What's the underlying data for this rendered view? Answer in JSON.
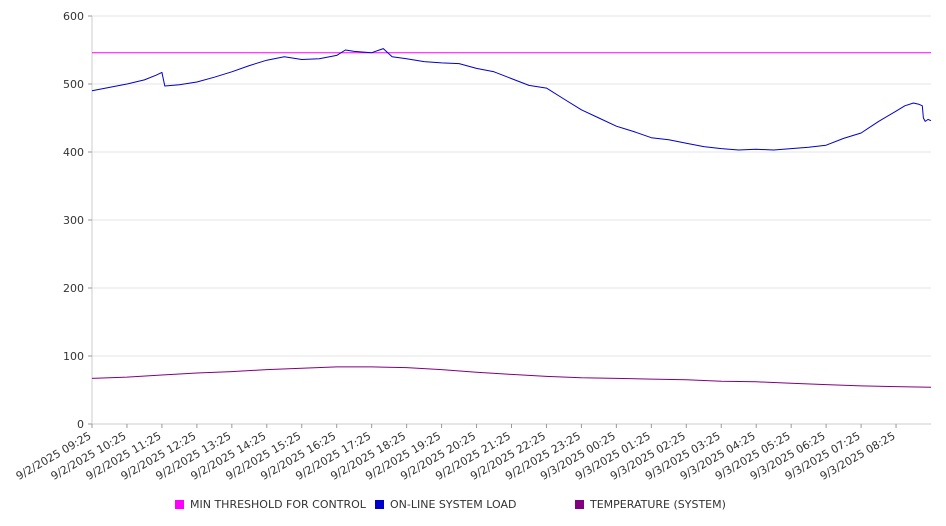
{
  "chart_data": {
    "type": "line",
    "title": "",
    "xlabel": "",
    "ylabel": "",
    "ylim": [
      0,
      600
    ],
    "y_ticks": [
      0,
      100,
      200,
      300,
      400,
      500,
      600
    ],
    "grid": true,
    "legend_position": "bottom",
    "x_tick_labels": [
      "9/2/2025 09:25",
      "9/2/2025 10:25",
      "9/2/2025 11:25",
      "9/2/2025 12:25",
      "9/2/2025 13:25",
      "9/2/2025 14:25",
      "9/2/2025 15:25",
      "9/2/2025 16:25",
      "9/2/2025 17:25",
      "9/2/2025 18:25",
      "9/2/2025 19:25",
      "9/2/2025 20:25",
      "9/2/2025 21:25",
      "9/2/2025 22:25",
      "9/2/2025 23:25",
      "9/3/2025 00:25",
      "9/3/2025 01:25",
      "9/3/2025 02:25",
      "9/3/2025 03:25",
      "9/3/2025 04:25",
      "9/3/2025 05:25",
      "9/3/2025 06:25",
      "9/3/2025 07:25",
      "9/3/2025 08:25"
    ],
    "series": [
      {
        "name": "MIN THRESHOLD FOR CONTROL",
        "color": "#ff00ff",
        "points": [
          [
            "9/2/2025 09:25",
            546
          ],
          [
            "9/3/2025 09:25",
            546
          ]
        ]
      },
      {
        "name": "ON-LINE SYSTEM LOAD",
        "color": "#0000cc",
        "points": [
          [
            "9/2/2025 09:25",
            490
          ],
          [
            "9/2/2025 09:55",
            495
          ],
          [
            "9/2/2025 10:25",
            500
          ],
          [
            "9/2/2025 10:55",
            506
          ],
          [
            "9/2/2025 11:15",
            513
          ],
          [
            "9/2/2025 11:25",
            517
          ],
          [
            "9/2/2025 11:30",
            497
          ],
          [
            "9/2/2025 11:55",
            499
          ],
          [
            "9/2/2025 12:25",
            503
          ],
          [
            "9/2/2025 12:55",
            510
          ],
          [
            "9/2/2025 13:25",
            518
          ],
          [
            "9/2/2025 13:55",
            527
          ],
          [
            "9/2/2025 14:25",
            535
          ],
          [
            "9/2/2025 14:55",
            540
          ],
          [
            "9/2/2025 15:25",
            536
          ],
          [
            "9/2/2025 15:55",
            537
          ],
          [
            "9/2/2025 16:25",
            542
          ],
          [
            "9/2/2025 16:40",
            550
          ],
          [
            "9/2/2025 16:55",
            548
          ],
          [
            "9/2/2025 17:25",
            546
          ],
          [
            "9/2/2025 17:45",
            552
          ],
          [
            "9/2/2025 18:00",
            540
          ],
          [
            "9/2/2025 18:25",
            537
          ],
          [
            "9/2/2025 18:55",
            533
          ],
          [
            "9/2/2025 19:25",
            531
          ],
          [
            "9/2/2025 19:55",
            530
          ],
          [
            "9/2/2025 20:25",
            523
          ],
          [
            "9/2/2025 20:55",
            518
          ],
          [
            "9/2/2025 21:25",
            508
          ],
          [
            "9/2/2025 21:55",
            498
          ],
          [
            "9/2/2025 22:25",
            494
          ],
          [
            "9/2/2025 22:55",
            478
          ],
          [
            "9/2/2025 23:25",
            462
          ],
          [
            "9/2/2025 23:55",
            450
          ],
          [
            "9/3/2025 00:25",
            438
          ],
          [
            "9/3/2025 00:55",
            430
          ],
          [
            "9/3/2025 01:25",
            421
          ],
          [
            "9/3/2025 01:55",
            418
          ],
          [
            "9/3/2025 02:25",
            413
          ],
          [
            "9/3/2025 02:55",
            408
          ],
          [
            "9/3/2025 03:25",
            405
          ],
          [
            "9/3/2025 03:55",
            403
          ],
          [
            "9/3/2025 04:25",
            404
          ],
          [
            "9/3/2025 04:55",
            403
          ],
          [
            "9/3/2025 05:25",
            405
          ],
          [
            "9/3/2025 05:55",
            407
          ],
          [
            "9/3/2025 06:25",
            410
          ],
          [
            "9/3/2025 06:55",
            420
          ],
          [
            "9/3/2025 07:25",
            428
          ],
          [
            "9/3/2025 07:55",
            445
          ],
          [
            "9/3/2025 08:25",
            460
          ],
          [
            "9/3/2025 08:40",
            468
          ],
          [
            "9/3/2025 08:55",
            472
          ],
          [
            "9/3/2025 09:05",
            470
          ],
          [
            "9/3/2025 09:10",
            468
          ],
          [
            "9/3/2025 09:12",
            450
          ],
          [
            "9/3/2025 09:15",
            445
          ],
          [
            "9/3/2025 09:20",
            448
          ],
          [
            "9/3/2025 09:25",
            446
          ]
        ]
      },
      {
        "name": "TEMPERATURE (SYSTEM)",
        "color": "#800080",
        "points": [
          [
            "9/2/2025 09:25",
            67
          ],
          [
            "9/2/2025 10:25",
            69
          ],
          [
            "9/2/2025 11:25",
            72
          ],
          [
            "9/2/2025 12:25",
            75
          ],
          [
            "9/2/2025 13:25",
            77
          ],
          [
            "9/2/2025 14:25",
            80
          ],
          [
            "9/2/2025 15:25",
            82
          ],
          [
            "9/2/2025 16:25",
            84
          ],
          [
            "9/2/2025 17:25",
            84
          ],
          [
            "9/2/2025 18:25",
            83
          ],
          [
            "9/2/2025 19:25",
            80
          ],
          [
            "9/2/2025 20:25",
            76
          ],
          [
            "9/2/2025 21:25",
            73
          ],
          [
            "9/2/2025 22:25",
            70
          ],
          [
            "9/2/2025 23:25",
            68
          ],
          [
            "9/3/2025 00:25",
            67
          ],
          [
            "9/3/2025 01:25",
            66
          ],
          [
            "9/3/2025 02:25",
            65
          ],
          [
            "9/3/2025 03:25",
            63
          ],
          [
            "9/3/2025 04:25",
            62
          ],
          [
            "9/3/2025 05:25",
            60
          ],
          [
            "9/3/2025 06:25",
            58
          ],
          [
            "9/3/2025 07:25",
            56
          ],
          [
            "9/3/2025 08:25",
            55
          ],
          [
            "9/3/2025 09:25",
            54
          ]
        ]
      }
    ]
  }
}
